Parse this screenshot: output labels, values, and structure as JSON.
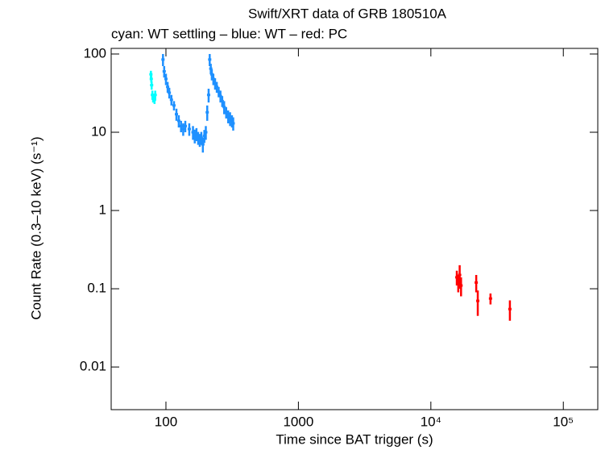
{
  "chart_data": {
    "type": "scatter",
    "title": "Swift/XRT data of GRB 180510A",
    "subtitle": "cyan: WT settling – blue: WT – red: PC",
    "x_label": "Time since BAT trigger (s)",
    "y_label": "Count Rate (0.3–10 keV) (s⁻¹)",
    "x_log": true,
    "y_log": true,
    "xlim": [
      38.6,
      182000
    ],
    "ylim": [
      0.00285,
      118
    ],
    "xticks": [
      100,
      1000,
      {
        "value": 10000,
        "label": "10⁴"
      },
      {
        "value": 100000,
        "label": "10⁵"
      }
    ],
    "yticks": [
      100,
      10,
      1,
      0.1,
      0.01
    ],
    "series": [
      {
        "color": "#00ffff",
        "x": [
          77,
          77.5,
          78,
          79,
          80,
          81,
          82,
          83
        ],
        "values": [
          55,
          48,
          40,
          30,
          27,
          28,
          26,
          30
        ],
        "yerr": [
          6,
          5,
          5,
          4,
          3,
          3,
          3,
          4
        ]
      },
      {
        "color": "#1e90ff",
        "x": [
          95,
          97,
          100,
          103,
          106,
          110,
          115,
          120,
          125,
          130,
          135,
          140,
          150,
          160,
          165,
          170,
          175,
          180,
          185,
          190,
          195,
          200,
          205,
          210,
          214,
          218,
          222,
          228,
          235,
          242,
          250,
          258,
          266,
          275,
          285,
          295,
          305,
          315,
          322
        ],
        "values": [
          85,
          60,
          48,
          38,
          32,
          26,
          22,
          17,
          14,
          12,
          11,
          12,
          11,
          10,
          9,
          9.5,
          8.5,
          8,
          8.5,
          7,
          9,
          10,
          18,
          30,
          85,
          65,
          55,
          48,
          42,
          38,
          33,
          29,
          25,
          21,
          18,
          16,
          15,
          14,
          13
        ],
        "yerr": [
          15,
          10,
          8,
          6,
          5,
          4,
          3,
          3,
          2.5,
          2,
          2,
          2,
          2,
          2,
          1.8,
          1.8,
          1.6,
          1.5,
          1.6,
          1.5,
          1.7,
          2,
          4,
          6,
          15,
          10,
          9,
          8,
          7,
          6,
          5,
          5,
          4,
          4,
          3,
          3,
          3,
          2.5,
          2.5
        ]
      },
      {
        "color": "#ff0000",
        "x": [
          15700,
          16100,
          16500,
          16900,
          22000,
          22600,
          28200,
          39500
        ],
        "values": [
          0.14,
          0.12,
          0.15,
          0.11,
          0.12,
          0.07,
          0.075,
          0.055
        ],
        "yerr": [
          0.03,
          0.03,
          0.05,
          0.03,
          0.03,
          0.025,
          0.012,
          0.016
        ]
      }
    ]
  }
}
